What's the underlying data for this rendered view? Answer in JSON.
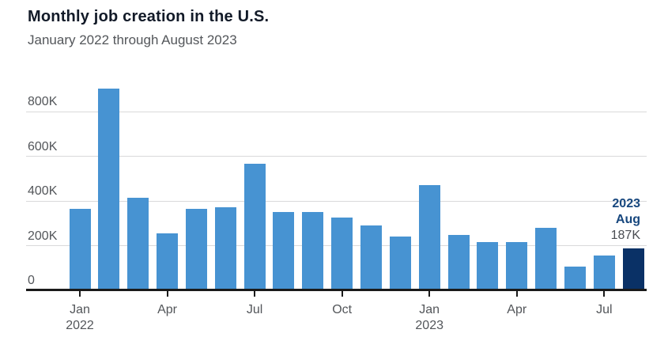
{
  "chart_data": {
    "type": "bar",
    "title": "Monthly job creation in the U.S.",
    "subtitle": "January 2022 through August 2023",
    "unit": "thousands of jobs",
    "categories": [
      "Jan 2022",
      "Feb 2022",
      "Mar 2022",
      "Apr 2022",
      "May 2022",
      "Jun 2022",
      "Jul 2022",
      "Aug 2022",
      "Sep 2022",
      "Oct 2022",
      "Nov 2022",
      "Dec 2022",
      "Jan 2023",
      "Feb 2023",
      "Mar 2023",
      "Apr 2023",
      "May 2023",
      "Jun 2023",
      "Jul 2023",
      "Aug 2023"
    ],
    "values": [
      364,
      904,
      414,
      254,
      364,
      370,
      568,
      352,
      350,
      324,
      290,
      239,
      472,
      248,
      217,
      217,
      281,
      105,
      157,
      187
    ],
    "highlight_index": 19,
    "ylim": [
      0,
      950
    ],
    "grid": true,
    "legend": "none",
    "y_ticks": [
      {
        "value": 0,
        "label": "0"
      },
      {
        "value": 200,
        "label": "200K"
      },
      {
        "value": 400,
        "label": "400K"
      },
      {
        "value": 600,
        "label": "600K"
      },
      {
        "value": 800,
        "label": "800K"
      }
    ],
    "x_ticks": [
      {
        "index": 0,
        "label": "Jan",
        "sublabel": "2022"
      },
      {
        "index": 3,
        "label": "Apr",
        "sublabel": ""
      },
      {
        "index": 6,
        "label": "Jul",
        "sublabel": ""
      },
      {
        "index": 9,
        "label": "Oct",
        "sublabel": ""
      },
      {
        "index": 12,
        "label": "Jan",
        "sublabel": "2023"
      },
      {
        "index": 15,
        "label": "Apr",
        "sublabel": ""
      },
      {
        "index": 18,
        "label": "Jul",
        "sublabel": ""
      }
    ],
    "annotation": {
      "year": "2023",
      "month": "Aug",
      "value": "187K"
    },
    "colors": {
      "bar": "#4793d2",
      "highlight_bar": "#0a3166",
      "title_text": "#121a28",
      "subtitle_text": "#53565a",
      "axis_text": "#53565a",
      "gridline": "#d9d9da",
      "axis_line": "#1a1a1a",
      "annotation_text": "#17477e",
      "annotation_value": "#4a4d52"
    }
  }
}
